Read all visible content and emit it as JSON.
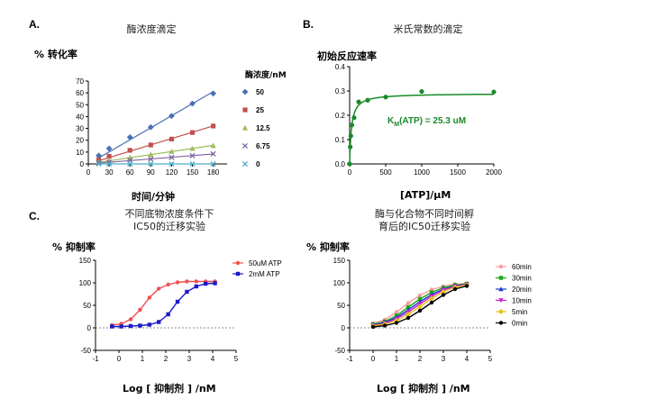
{
  "chart_data": [
    {
      "id": "A",
      "type": "scatter",
      "panel_label": "A.",
      "title": "酶浓度滴定",
      "ylabel": "%  转化率",
      "xlabel": "时间/分钟",
      "legend_title": "酶浓度/nM",
      "xlim": [
        0,
        200
      ],
      "ylim": [
        0,
        70
      ],
      "xticks": [
        0,
        30,
        60,
        90,
        120,
        150,
        180
      ],
      "yticks": [
        0,
        10,
        20,
        30,
        40,
        50,
        60,
        70
      ],
      "x": [
        15,
        30,
        60,
        90,
        120,
        150,
        180
      ],
      "series": [
        {
          "name": "50",
          "color": "#4a6fb5",
          "marker": "diamond",
          "values": [
            7,
            13,
            22.5,
            31,
            40.5,
            51,
            59.5
          ]
        },
        {
          "name": "25",
          "color": "#c0504d",
          "marker": "square",
          "values": [
            3.5,
            6.5,
            11.5,
            16,
            21,
            26.5,
            32
          ]
        },
        {
          "name": "12.5",
          "color": "#9bbb59",
          "marker": "triangle",
          "values": [
            1.5,
            3,
            5.5,
            8,
            10.5,
            13,
            15.5
          ]
        },
        {
          "name": "6.75",
          "color": "#8064a2",
          "marker": "x",
          "values": [
            1,
            1.5,
            3,
            4,
            5.5,
            7,
            8.5
          ]
        },
        {
          "name": "0",
          "color": "#4bacc6",
          "marker": "x",
          "values": [
            0,
            0,
            0,
            0,
            0,
            0,
            0
          ]
        }
      ]
    },
    {
      "id": "B",
      "type": "scatter",
      "panel_label": "B.",
      "title": "米氏常数的滴定",
      "ylabel": "初始反应速率",
      "xlabel": "[ATP]/µM",
      "annotation": "K",
      "annotation_sub": "M",
      "annotation_rest": "(ATP) = 25.3 uM",
      "xlim": [
        0,
        2000
      ],
      "ylim": [
        0,
        0.4
      ],
      "xticks": [
        0,
        500,
        1000,
        1500,
        2000
      ],
      "yticks": [
        0.0,
        0.1,
        0.2,
        0.3,
        0.4
      ],
      "color": "#1a8a2a",
      "km": 25.3,
      "vmax": 0.29,
      "x": [
        0,
        8,
        16,
        31,
        62,
        125,
        250,
        500,
        1000,
        2000
      ],
      "values": [
        0.0,
        0.07,
        0.115,
        0.16,
        0.19,
        0.255,
        0.262,
        0.275,
        0.298,
        0.296
      ]
    },
    {
      "id": "C1",
      "type": "line",
      "panel_label": "C.",
      "title_lines": [
        "不同底物浓度条件下",
        "IC50的迁移实验"
      ],
      "ylabel": "%  抑制率",
      "xlabel": "Log [ 抑制剂 ] /nM",
      "xlim": [
        -1,
        5
      ],
      "ylim": [
        -50,
        150
      ],
      "xticks": [
        -1,
        0,
        1,
        2,
        3,
        4,
        5
      ],
      "yticks": [
        -50,
        0,
        50,
        100,
        150
      ],
      "x": [
        -0.3,
        0.1,
        0.5,
        0.9,
        1.3,
        1.7,
        2.1,
        2.5,
        2.9,
        3.3,
        3.7,
        4.1
      ],
      "series": [
        {
          "name": "50uM ATP",
          "color": "#f05050",
          "marker": "circle",
          "values": [
            6,
            9,
            19,
            40,
            67,
            87,
            96,
            101,
            103,
            103,
            103,
            103
          ]
        },
        {
          "name": "2mM ATP",
          "color": "#1a1acc",
          "marker": "square",
          "values": [
            3,
            3,
            4,
            5,
            7,
            13,
            30,
            58,
            80,
            92,
            98,
            99
          ]
        }
      ]
    },
    {
      "id": "C2",
      "type": "line",
      "title_lines": [
        "酶与化合物不同时间孵",
        "育后的IC50迁移实验"
      ],
      "ylabel": "%  抑制率",
      "xlabel": "Log [ 抑制剂 ] /nM",
      "xlim": [
        -1,
        5
      ],
      "ylim": [
        -50,
        150
      ],
      "xticks": [
        -1,
        0,
        1,
        2,
        3,
        4,
        5
      ],
      "yticks": [
        -50,
        0,
        50,
        100,
        150
      ],
      "x": [
        0,
        0.5,
        1,
        1.5,
        2,
        2.5,
        3,
        3.5,
        4
      ],
      "series": [
        {
          "name": "60min",
          "color": "#ff9aa2",
          "marker": "circle",
          "values": [
            10,
            18,
            35,
            55,
            72,
            85,
            92,
            97,
            98
          ]
        },
        {
          "name": "30min",
          "color": "#1aa71a",
          "marker": "square",
          "values": [
            8,
            14,
            27,
            46,
            64,
            79,
            89,
            95,
            98
          ]
        },
        {
          "name": "20min",
          "color": "#1a3ccc",
          "marker": "triangle",
          "values": [
            6,
            12,
            23,
            40,
            58,
            74,
            86,
            93,
            97
          ]
        },
        {
          "name": "10min",
          "color": "#cc22cc",
          "marker": "triangle-down",
          "values": [
            5,
            10,
            20,
            35,
            53,
            70,
            84,
            92,
            96
          ]
        },
        {
          "name": "5min",
          "color": "#e6c21a",
          "marker": "diamond",
          "values": [
            4,
            8,
            16,
            30,
            47,
            65,
            80,
            90,
            95
          ]
        },
        {
          "name": "0min",
          "color": "#000000",
          "marker": "circle",
          "values": [
            2,
            5,
            11,
            22,
            38,
            56,
            73,
            86,
            93
          ]
        }
      ]
    }
  ]
}
